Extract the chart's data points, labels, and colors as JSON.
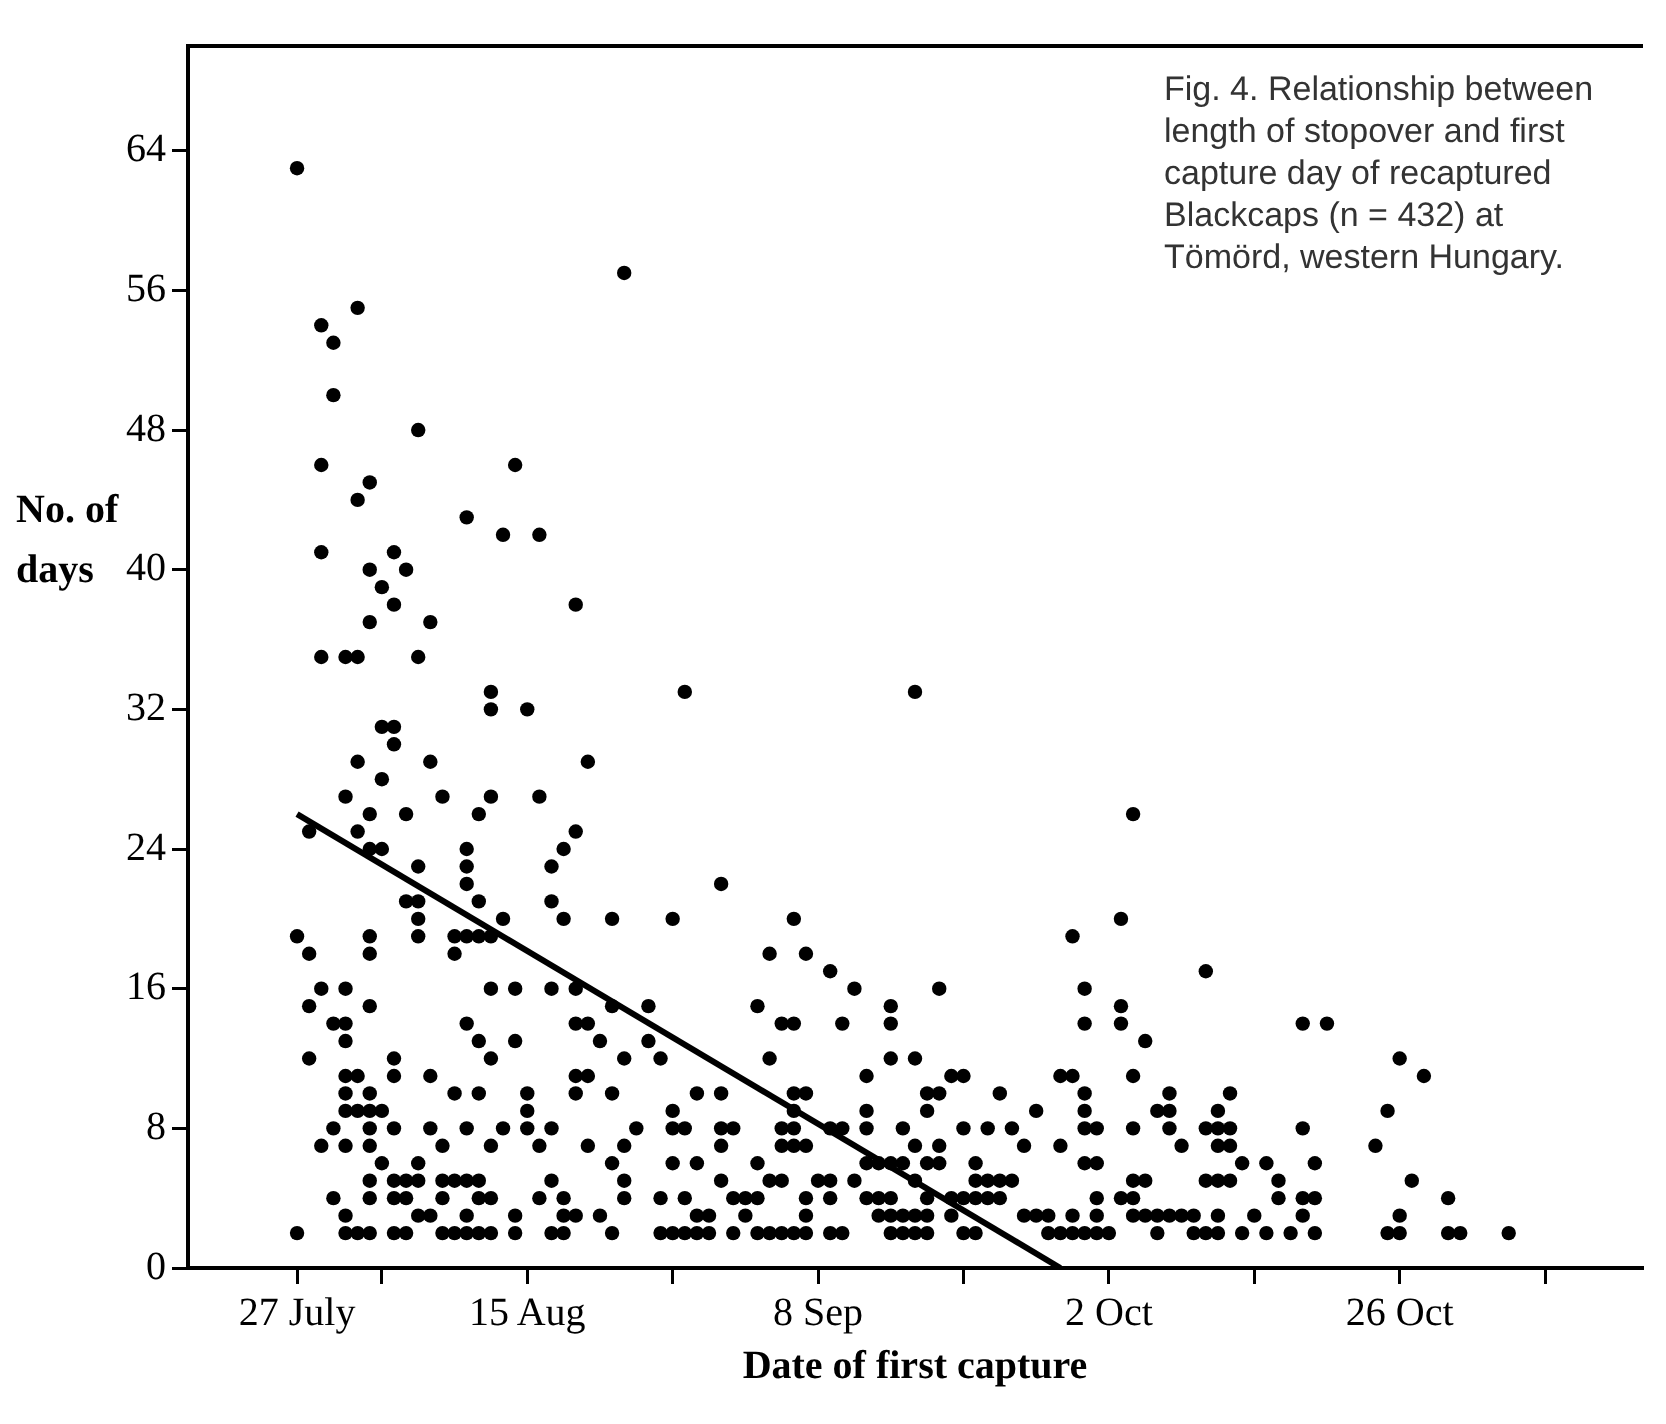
{
  "chart_data": {
    "type": "scatter",
    "xlabel": "Date of first capture",
    "ylabel": "No. of days",
    "annotations": [
      "Fig. 4. Relationship between length of stopover and first capture day of recaptured Blackcaps (n = 432) at Tömörd, western Hungary."
    ],
    "xlim": [
      "--07-18",
      "--11-15"
    ],
    "ylim": [
      0,
      70
    ],
    "xticks": [
      {
        "value": "--07-27",
        "label": "27 July"
      },
      {
        "value": "--08-03",
        "label": null
      },
      {
        "value": "--08-15",
        "label": "15 Aug"
      },
      {
        "value": "--08-27",
        "label": null
      },
      {
        "value": "--09-08",
        "label": "8 Sep"
      },
      {
        "value": "--09-20",
        "label": null
      },
      {
        "value": "--10-02",
        "label": "2 Oct"
      },
      {
        "value": "--10-14",
        "label": null
      },
      {
        "value": "--10-26",
        "label": "26 Oct"
      },
      {
        "value": "--11-07",
        "label": null
      }
    ],
    "yticks": [
      0,
      8,
      16,
      24,
      32,
      40,
      48,
      56,
      64
    ],
    "grid": false,
    "legend": false,
    "series": [
      {
        "type": "scatter",
        "color": "#000000",
        "marker": "circle",
        "x": [
          "--07-27",
          "--08-23",
          "--08-01",
          "--07-29",
          "--07-30",
          "--07-30",
          "--08-06",
          "--07-29",
          "--08-02",
          "--08-01",
          "--08-14",
          "--08-10",
          "--08-13",
          "--08-16",
          "--07-29",
          "--08-02",
          "--08-04",
          "--08-05",
          "--08-03",
          "--08-04",
          "--08-19",
          "--08-02",
          "--08-07",
          "--07-29",
          "--07-31",
          "--08-01",
          "--08-06",
          "--08-12",
          "--08-12",
          "--08-15",
          "--08-28",
          "--08-03",
          "--08-04",
          "--08-04",
          "--08-01",
          "--08-07",
          "--08-20",
          "--08-03",
          "--07-31",
          "--08-08",
          "--08-12",
          "--08-16",
          "--08-02",
          "--08-05",
          "--08-11",
          "--07-28",
          "--08-01",
          "--08-19",
          "--08-02",
          "--08-03",
          "--08-10",
          "--08-18",
          "--08-06",
          "--08-10",
          "--08-10",
          "--08-17",
          "--08-05",
          "--08-06",
          "--08-11",
          "--08-17",
          "--08-06",
          "--08-13",
          "--08-18",
          "--08-22",
          "--08-27",
          "--08-31",
          "--07-27",
          "--08-02",
          "--08-09",
          "--08-10",
          "--08-11",
          "--08-12",
          "--08-06",
          "--07-28",
          "--08-02",
          "--08-09",
          "--07-29",
          "--07-31",
          "--08-12",
          "--08-14",
          "--08-17",
          "--08-19",
          "--07-28",
          "--08-02",
          "--08-22",
          "--08-25",
          "--07-30",
          "--07-31",
          "--08-19",
          "--08-20",
          "--08-10",
          "--07-31",
          "--08-11",
          "--08-14",
          "--08-21",
          "--08-25",
          "--07-28",
          "--08-04",
          "--08-12",
          "--08-23",
          "--08-26",
          "--07-31",
          "--08-01",
          "--08-04",
          "--08-07",
          "--08-19",
          "--08-20",
          "--07-31",
          "--08-02",
          "--08-09",
          "--08-11",
          "--08-15",
          "--08-19",
          "--08-22",
          "--08-29",
          "--08-31",
          "--07-31",
          "--08-01",
          "--08-02",
          "--08-03",
          "--08-15",
          "--08-27",
          "--07-30",
          "--08-02",
          "--08-04",
          "--08-07",
          "--08-10",
          "--08-13",
          "--08-15",
          "--08-17",
          "--08-24",
          "--08-27",
          "--08-28",
          "--07-29",
          "--07-31",
          "--08-02",
          "--08-08",
          "--08-12",
          "--08-16",
          "--08-20",
          "--08-23",
          "--08-31",
          "--08-03",
          "--08-06",
          "--08-22",
          "--08-27",
          "--08-29",
          "--08-02",
          "--08-04",
          "--08-05",
          "--08-06",
          "--08-08",
          "--08-09",
          "--08-10",
          "--08-11",
          "--08-17",
          "--08-23",
          "--08-31",
          "--07-30",
          "--08-02",
          "--08-04",
          "--08-05",
          "--08-08",
          "--08-11",
          "--08-12",
          "--08-16",
          "--08-18",
          "--08-23",
          "--08-26",
          "--08-28",
          "--07-31",
          "--08-06",
          "--08-07",
          "--08-10",
          "--08-14",
          "--08-18",
          "--08-19",
          "--08-21",
          "--08-29",
          "--07-27",
          "--07-31",
          "--08-01",
          "--08-02",
          "--08-04",
          "--08-05",
          "--08-08",
          "--08-09",
          "--08-10",
          "--08-11",
          "--08-12",
          "--08-14",
          "--08-17",
          "--08-18",
          "--08-22",
          "--08-26",
          "--08-27",
          "--08-28",
          "--08-29",
          "--08-30",
          "--09-16",
          "--10-04",
          "--09-06",
          "--10-03",
          "--09-29",
          "--09-04",
          "--09-07",
          "--10-10",
          "--09-09",
          "--09-11",
          "--09-18",
          "--09-30",
          "--09-03",
          "--09-14",
          "--10-03",
          "--09-05",
          "--09-06",
          "--09-10",
          "--09-14",
          "--09-30",
          "--10-03",
          "--10-18",
          "--10-20",
          "--10-05",
          "--09-04",
          "--09-14",
          "--09-16",
          "--10-26",
          "--10-28",
          "--09-12",
          "--09-19",
          "--09-20",
          "--09-28",
          "--09-29",
          "--10-04",
          "--09-06",
          "--09-07",
          "--09-17",
          "--09-18",
          "--09-23",
          "--09-30",
          "--10-07",
          "--10-12",
          "--10-25",
          "--09-06",
          "--09-12",
          "--09-17",
          "--09-26",
          "--09-30",
          "--10-06",
          "--10-07",
          "--10-11",
          "--08-31",
          "--09-01",
          "--09-05",
          "--09-06",
          "--09-09",
          "--09-10",
          "--09-12",
          "--09-15",
          "--09-20",
          "--09-22",
          "--09-24",
          "--09-30",
          "--10-01",
          "--10-04",
          "--10-07",
          "--10-10",
          "--10-11",
          "--10-12",
          "--10-18",
          "--09-05",
          "--09-06",
          "--09-07",
          "--09-16",
          "--09-18",
          "--09-25",
          "--09-28",
          "--10-08",
          "--10-11",
          "--10-12",
          "--10-24",
          "--09-03",
          "--09-12",
          "--09-13",
          "--09-14",
          "--09-15",
          "--09-17",
          "--09-18",
          "--09-21",
          "--09-30",
          "--10-01",
          "--10-13",
          "--10-15",
          "--10-19",
          "--09-04",
          "--09-05",
          "--09-08",
          "--09-09",
          "--09-11",
          "--09-16",
          "--09-21",
          "--09-22",
          "--09-23",
          "--09-24",
          "--10-04",
          "--10-05",
          "--10-10",
          "--10-11",
          "--10-12",
          "--10-16",
          "--10-27",
          "--09-01",
          "--09-02",
          "--09-03",
          "--09-07",
          "--09-09",
          "--09-12",
          "--09-13",
          "--09-14",
          "--09-17",
          "--09-19",
          "--09-20",
          "--09-21",
          "--09-22",
          "--09-23",
          "--10-01",
          "--10-03",
          "--10-04",
          "--10-16",
          "--10-18",
          "--10-19",
          "--10-30",
          "--08-30",
          "--09-02",
          "--09-07",
          "--09-13",
          "--09-14",
          "--09-15",
          "--09-16",
          "--09-17",
          "--09-19",
          "--09-25",
          "--09-26",
          "--09-27",
          "--09-29",
          "--10-01",
          "--10-04",
          "--10-05",
          "--10-06",
          "--10-07",
          "--10-08",
          "--10-09",
          "--10-11",
          "--10-14",
          "--10-18",
          "--10-26",
          "--09-01",
          "--09-03",
          "--09-04",
          "--09-05",
          "--09-06",
          "--09-07",
          "--09-09",
          "--09-10",
          "--09-14",
          "--09-15",
          "--09-16",
          "--09-17",
          "--09-20",
          "--09-21",
          "--09-27",
          "--09-28",
          "--09-29",
          "--09-30",
          "--10-01",
          "--10-02",
          "--10-06",
          "--10-09",
          "--10-10",
          "--10-11",
          "--10-13",
          "--10-15",
          "--10-17",
          "--10-19",
          "--10-25",
          "--10-26",
          "--10-30",
          "--10-31",
          "--11-04"
        ],
        "values": [
          63,
          57,
          55,
          54,
          53,
          50,
          48,
          46,
          45,
          44,
          46,
          43,
          42,
          42,
          41,
          40,
          41,
          40,
          39,
          38,
          38,
          37,
          37,
          35,
          35,
          35,
          35,
          33,
          32,
          32,
          33,
          31,
          31,
          30,
          29,
          29,
          29,
          28,
          27,
          27,
          27,
          27,
          26,
          26,
          26,
          25,
          25,
          25,
          24,
          24,
          24,
          24,
          23,
          23,
          22,
          23,
          21,
          21,
          21,
          21,
          20,
          20,
          20,
          20,
          20,
          22,
          19,
          19,
          19,
          19,
          19,
          19,
          19,
          18,
          18,
          18,
          16,
          16,
          16,
          16,
          16,
          16,
          15,
          15,
          15,
          15,
          14,
          14,
          14,
          14,
          14,
          13,
          13,
          13,
          13,
          13,
          12,
          12,
          12,
          12,
          12,
          11,
          11,
          11,
          11,
          11,
          11,
          10,
          10,
          10,
          10,
          10,
          10,
          10,
          10,
          10,
          9,
          9,
          9,
          9,
          9,
          9,
          8,
          8,
          8,
          8,
          8,
          8,
          8,
          8,
          8,
          8,
          8,
          7,
          7,
          7,
          7,
          7,
          7,
          7,
          7,
          7,
          6,
          6,
          6,
          6,
          6,
          5,
          5,
          5,
          5,
          5,
          5,
          5,
          5,
          5,
          5,
          5,
          4,
          4,
          4,
          4,
          4,
          4,
          4,
          4,
          4,
          4,
          4,
          4,
          3,
          3,
          3,
          3,
          3,
          3,
          3,
          3,
          3,
          2,
          2,
          2,
          2,
          2,
          2,
          2,
          2,
          2,
          2,
          2,
          2,
          2,
          2,
          2,
          2,
          2,
          2,
          2,
          2,
          33,
          26,
          20,
          20,
          19,
          18,
          18,
          17,
          17,
          16,
          16,
          16,
          15,
          15,
          15,
          14,
          14,
          14,
          14,
          14,
          14,
          14,
          14,
          13,
          12,
          12,
          12,
          12,
          11,
          11,
          11,
          11,
          11,
          11,
          11,
          10,
          10,
          10,
          10,
          10,
          10,
          10,
          10,
          9,
          9,
          9,
          9,
          9,
          9,
          9,
          9,
          9,
          8,
          8,
          8,
          8,
          8,
          8,
          8,
          8,
          8,
          8,
          8,
          8,
          8,
          8,
          8,
          8,
          8,
          8,
          8,
          7,
          7,
          7,
          7,
          7,
          7,
          7,
          7,
          7,
          7,
          7,
          6,
          6,
          6,
          6,
          6,
          6,
          6,
          6,
          6,
          6,
          6,
          6,
          6,
          5,
          5,
          5,
          5,
          5,
          5,
          5,
          5,
          5,
          5,
          5,
          5,
          5,
          5,
          5,
          5,
          5,
          4,
          4,
          4,
          4,
          4,
          4,
          4,
          4,
          4,
          4,
          4,
          4,
          4,
          4,
          4,
          4,
          4,
          4,
          4,
          4,
          4,
          3,
          3,
          3,
          3,
          3,
          3,
          3,
          3,
          3,
          3,
          3,
          3,
          3,
          3,
          3,
          3,
          3,
          3,
          3,
          3,
          3,
          3,
          3,
          3,
          2,
          2,
          2,
          2,
          2,
          2,
          2,
          2,
          2,
          2,
          2,
          2,
          2,
          2,
          2,
          2,
          2,
          2,
          2,
          2,
          2,
          2,
          2,
          2,
          2,
          2,
          2,
          2,
          2,
          2,
          2,
          2,
          2
        ]
      },
      {
        "type": "line",
        "color": "#000000",
        "x": [
          "--07-27",
          "--09-28"
        ],
        "values": [
          26,
          0
        ]
      }
    ]
  }
}
